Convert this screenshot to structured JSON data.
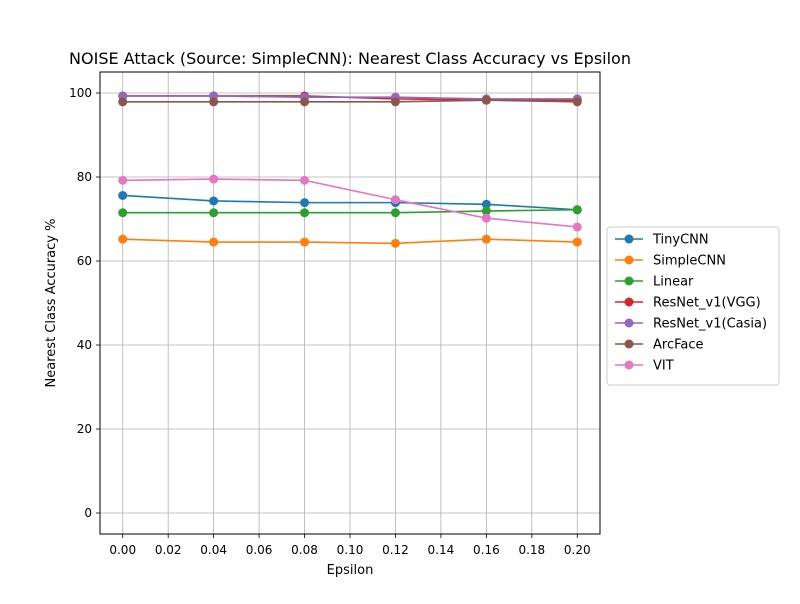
{
  "chart_data": {
    "type": "line",
    "title": "NOISE Attack (Source: SimpleCNN): Nearest Class Accuracy vs Epsilon",
    "xlabel": "Epsilon",
    "ylabel": "Nearest Class Accuracy %",
    "x": [
      0.0,
      0.04,
      0.08,
      0.12,
      0.16,
      0.2
    ],
    "xlim": [
      -0.01,
      0.21
    ],
    "ylim": [
      -5,
      105
    ],
    "xticks": [
      0.0,
      0.02,
      0.04,
      0.06,
      0.08,
      0.1,
      0.12,
      0.14,
      0.16,
      0.18,
      0.2
    ],
    "xtick_labels": [
      "0.00",
      "0.02",
      "0.04",
      "0.06",
      "0.08",
      "0.10",
      "0.12",
      "0.14",
      "0.16",
      "0.18",
      "0.20"
    ],
    "yticks": [
      0,
      20,
      40,
      60,
      80,
      100
    ],
    "ytick_labels": [
      "0",
      "20",
      "40",
      "60",
      "80",
      "100"
    ],
    "grid": true,
    "legend_position": "center-right outside plot",
    "series": [
      {
        "name": "TinyCNN",
        "color": "#1f77b4",
        "values": [
          75.6,
          74.3,
          73.9,
          73.9,
          73.5,
          72.2
        ]
      },
      {
        "name": "SimpleCNN",
        "color": "#ff7f0e",
        "values": [
          65.2,
          64.5,
          64.5,
          64.2,
          65.2,
          64.5
        ]
      },
      {
        "name": "Linear",
        "color": "#2ca02c",
        "values": [
          71.5,
          71.5,
          71.5,
          71.5,
          71.9,
          72.2
        ]
      },
      {
        "name": "ResNet_v1(VGG)",
        "color": "#d62728",
        "values": [
          99.3,
          99.3,
          99.3,
          98.6,
          98.3,
          98.3
        ]
      },
      {
        "name": "ResNet_v1(Casia)",
        "color": "#9467bd",
        "values": [
          99.3,
          99.3,
          99.0,
          99.0,
          98.6,
          98.6
        ]
      },
      {
        "name": "ArcFace",
        "color": "#8c564b",
        "values": [
          97.9,
          97.9,
          97.9,
          97.9,
          98.3,
          97.9
        ]
      },
      {
        "name": "VIT",
        "color": "#e377c2",
        "values": [
          79.2,
          79.5,
          79.2,
          74.6,
          70.2,
          68.1
        ]
      }
    ]
  }
}
